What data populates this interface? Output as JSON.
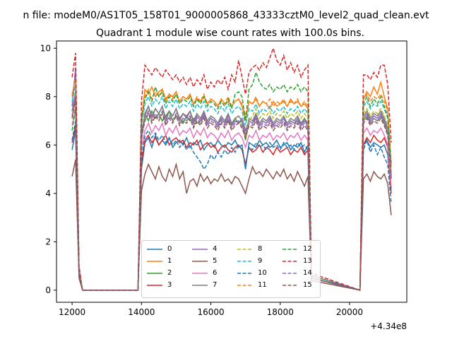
{
  "suptitle": "n file: modeM0/AS1T05_158T01_9000005868_43333cztM0_level2_quad_clean.evt",
  "chart_data": {
    "type": "line",
    "title": "Quadrant 1 module wise count rates with 100.0s bins.",
    "xlabel": "",
    "ylabel": "",
    "x_offset_label": "+4.34e8",
    "xlim": [
      11550,
      21650
    ],
    "ylim": [
      -0.5,
      10.3
    ],
    "xticks": [
      12000,
      14000,
      16000,
      18000,
      20000
    ],
    "yticks": [
      0,
      2,
      4,
      6,
      8,
      10
    ],
    "grid": false,
    "legend_position": "lower center",
    "x": [
      12000,
      12100,
      12200,
      12300,
      13900,
      14000,
      14100,
      14200,
      14300,
      14400,
      14500,
      14600,
      14700,
      14800,
      14900,
      15000,
      15100,
      15200,
      15300,
      15400,
      15500,
      15600,
      15700,
      15800,
      15900,
      16000,
      16100,
      16200,
      16300,
      16400,
      16500,
      16600,
      16700,
      16800,
      16900,
      17000,
      17100,
      17200,
      17300,
      17400,
      17500,
      17600,
      17700,
      17800,
      17900,
      18000,
      18100,
      18200,
      18300,
      18400,
      18500,
      18600,
      18700,
      18800,
      18900,
      20300,
      20400,
      20500,
      20600,
      20700,
      20800,
      20900,
      21000,
      21100,
      21200
    ],
    "series": [
      {
        "name": "0",
        "color": "#1f77b4",
        "dash": "solid",
        "values": [
          5.8,
          6.6,
          0.6,
          0,
          0,
          5.0,
          6.1,
          6.3,
          5.9,
          6.4,
          6.0,
          6.2,
          6.0,
          6.3,
          5.9,
          6.1,
          6.2,
          6.0,
          6.3,
          5.9,
          6.1,
          6.0,
          6.2,
          5.8,
          6.0,
          6.1,
          5.9,
          6.2,
          6.0,
          5.9,
          6.1,
          6.0,
          6.2,
          5.9,
          6.0,
          5.0,
          6.1,
          6.0,
          5.9,
          6.2,
          6.0,
          6.1,
          5.9,
          6.0,
          6.2,
          5.9,
          6.0,
          6.1,
          5.8,
          6.0,
          5.9,
          6.1,
          5.7,
          6.0,
          0.5,
          0,
          6.0,
          6.2,
          5.9,
          6.1,
          6.0,
          5.9,
          6.0,
          5.6,
          4.2
        ]
      },
      {
        "name": "1",
        "color": "#ff7f0e",
        "dash": "solid",
        "values": [
          8.0,
          8.9,
          0.9,
          0,
          0,
          7.0,
          8.3,
          8.1,
          8.4,
          8.0,
          8.2,
          8.3,
          7.9,
          8.1,
          8.0,
          8.2,
          7.8,
          8.0,
          7.9,
          8.1,
          7.7,
          7.9,
          7.8,
          8.0,
          7.7,
          7.9,
          7.8,
          7.6,
          7.9,
          7.7,
          7.8,
          7.6,
          7.8,
          7.9,
          7.6,
          7.0,
          7.8,
          7.7,
          7.9,
          7.6,
          7.8,
          7.7,
          7.5,
          7.8,
          7.6,
          7.7,
          7.8,
          7.6,
          7.9,
          7.7,
          7.8,
          7.6,
          7.7,
          7.5,
          0.6,
          0,
          7.9,
          8.2,
          8.0,
          8.4,
          8.1,
          8.6,
          8.0,
          7.5,
          5.1
        ]
      },
      {
        "name": "2",
        "color": "#2ca02c",
        "dash": "solid",
        "values": [
          7.4,
          8.1,
          0.8,
          0,
          0,
          6.2,
          7.3,
          7.0,
          7.4,
          7.1,
          7.3,
          7.0,
          7.2,
          7.4,
          7.0,
          7.2,
          7.1,
          6.9,
          7.2,
          7.0,
          7.1,
          6.9,
          7.0,
          7.2,
          6.9,
          7.1,
          7.0,
          6.8,
          7.1,
          6.9,
          7.0,
          6.8,
          7.1,
          6.9,
          7.0,
          6.2,
          7.0,
          6.9,
          7.1,
          6.8,
          7.0,
          6.9,
          7.1,
          6.8,
          7.0,
          6.9,
          7.1,
          6.8,
          7.0,
          6.9,
          7.0,
          6.8,
          7.1,
          6.8,
          0.6,
          0,
          7.0,
          7.2,
          6.9,
          7.1,
          7.0,
          7.2,
          6.9,
          6.5,
          4.6
        ]
      },
      {
        "name": "3",
        "color": "#d62728",
        "dash": "solid",
        "values": [
          6.1,
          6.8,
          0.6,
          0,
          0,
          5.2,
          6.2,
          6.4,
          6.1,
          6.3,
          6.0,
          6.2,
          6.4,
          6.0,
          6.2,
          6.3,
          6.1,
          6.2,
          5.9,
          6.1,
          6.0,
          6.2,
          5.8,
          6.0,
          6.1,
          5.9,
          6.0,
          5.7,
          5.9,
          6.0,
          5.8,
          5.7,
          5.9,
          6.0,
          5.8,
          5.2,
          5.9,
          5.7,
          5.8,
          6.0,
          5.7,
          5.9,
          5.8,
          5.6,
          5.9,
          5.7,
          5.8,
          5.9,
          5.6,
          5.8,
          5.7,
          5.9,
          5.6,
          5.8,
          0.5,
          0,
          6.0,
          6.3,
          6.1,
          6.4,
          6.2,
          6.1,
          6.3,
          5.9,
          4.0
        ]
      },
      {
        "name": "4",
        "color": "#9467bd",
        "dash": "solid",
        "values": [
          7.6,
          9.2,
          0.8,
          0,
          0,
          6.6,
          7.2,
          7.6,
          7.1,
          7.5,
          7.3,
          7.6,
          7.0,
          7.4,
          7.2,
          7.5,
          7.0,
          7.3,
          7.1,
          7.4,
          6.9,
          7.2,
          7.0,
          7.3,
          6.9,
          7.1,
          7.0,
          6.8,
          7.1,
          6.9,
          7.2,
          6.8,
          7.0,
          6.9,
          7.1,
          6.6,
          7.0,
          6.9,
          7.2,
          6.8,
          7.0,
          6.9,
          7.1,
          6.8,
          7.0,
          6.9,
          7.1,
          6.8,
          7.0,
          6.9,
          7.1,
          6.8,
          7.0,
          6.8,
          0.6,
          0,
          7.1,
          7.3,
          7.0,
          7.2,
          7.1,
          7.3,
          7.0,
          6.6,
          4.7
        ]
      },
      {
        "name": "5",
        "color": "#8c564b",
        "dash": "solid",
        "values": [
          4.7,
          5.4,
          0.5,
          0,
          0,
          4.1,
          4.8,
          5.2,
          4.9,
          4.6,
          5.1,
          4.7,
          4.5,
          5.0,
          4.7,
          5.2,
          4.6,
          4.9,
          4.0,
          4.5,
          4.6,
          4.3,
          4.8,
          4.5,
          4.7,
          4.4,
          4.6,
          4.5,
          4.8,
          4.5,
          4.6,
          4.4,
          4.7,
          4.6,
          4.3,
          4.0,
          4.6,
          5.1,
          4.8,
          4.9,
          4.7,
          5.0,
          4.8,
          4.6,
          4.9,
          4.7,
          5.0,
          4.6,
          4.8,
          4.5,
          4.9,
          4.6,
          4.3,
          4.7,
          0.4,
          0,
          4.6,
          4.8,
          4.5,
          4.9,
          4.7,
          4.6,
          4.8,
          4.4,
          3.1
        ]
      },
      {
        "name": "6",
        "color": "#e377c2",
        "dash": "solid",
        "values": [
          6.8,
          7.6,
          0.7,
          0,
          0,
          5.9,
          6.6,
          6.9,
          6.5,
          6.8,
          6.6,
          6.9,
          6.4,
          6.7,
          6.5,
          6.8,
          6.4,
          6.6,
          6.5,
          6.7,
          6.3,
          6.6,
          6.4,
          6.7,
          6.3,
          6.5,
          6.4,
          6.2,
          6.5,
          6.3,
          6.6,
          6.2,
          6.4,
          6.5,
          6.3,
          5.9,
          6.4,
          6.3,
          6.6,
          6.2,
          6.4,
          6.3,
          6.5,
          6.2,
          6.4,
          6.3,
          6.5,
          6.2,
          6.4,
          6.3,
          6.5,
          6.2,
          6.4,
          6.2,
          0.5,
          0,
          6.5,
          6.7,
          6.4,
          6.6,
          6.5,
          6.7,
          6.4,
          6.0,
          4.3
        ]
      },
      {
        "name": "7",
        "color": "#7f7f7f",
        "dash": "solid",
        "values": [
          7.4,
          8.2,
          0.8,
          0,
          0,
          6.4,
          7.3,
          7.6,
          7.2,
          7.5,
          7.3,
          7.6,
          7.1,
          7.4,
          7.2,
          7.5,
          7.1,
          7.3,
          7.2,
          7.4,
          7.0,
          7.3,
          7.1,
          7.4,
          7.0,
          7.2,
          7.1,
          6.9,
          7.2,
          7.0,
          7.3,
          6.9,
          7.1,
          7.2,
          7.0,
          6.4,
          7.1,
          7.0,
          7.3,
          6.9,
          7.1,
          7.0,
          7.2,
          6.9,
          7.1,
          7.0,
          7.2,
          6.9,
          7.1,
          7.0,
          7.2,
          6.9,
          7.1,
          6.9,
          0.6,
          0,
          7.2,
          7.4,
          7.1,
          7.3,
          7.2,
          7.4,
          7.1,
          6.7,
          4.8
        ]
      },
      {
        "name": "8",
        "color": "#bcbd22",
        "dash": "dashed",
        "values": [
          7.2,
          8.0,
          0.8,
          0,
          0,
          6.3,
          7.1,
          7.4,
          7.0,
          7.3,
          7.1,
          7.4,
          6.9,
          7.2,
          7.0,
          7.3,
          6.9,
          7.1,
          7.0,
          7.2,
          6.8,
          7.1,
          6.9,
          7.2,
          6.8,
          7.0,
          6.9,
          6.7,
          7.0,
          6.8,
          7.1,
          6.7,
          6.9,
          7.0,
          6.8,
          6.3,
          7.0,
          7.2,
          7.5,
          7.1,
          7.3,
          7.2,
          7.4,
          7.1,
          7.3,
          7.2,
          7.4,
          7.1,
          7.3,
          7.2,
          7.4,
          7.1,
          7.3,
          7.1,
          0.6,
          0,
          7.3,
          7.5,
          7.2,
          7.4,
          7.3,
          7.5,
          7.2,
          6.8,
          4.9
        ]
      },
      {
        "name": "9",
        "color": "#17becf",
        "dash": "dashed",
        "values": [
          7.8,
          8.5,
          0.8,
          0,
          0,
          6.8,
          7.7,
          8.0,
          7.6,
          7.9,
          7.7,
          8.0,
          7.5,
          7.8,
          7.6,
          7.9,
          7.5,
          7.7,
          7.6,
          7.8,
          7.4,
          7.7,
          7.5,
          7.8,
          7.4,
          7.6,
          7.5,
          7.3,
          7.6,
          7.4,
          7.7,
          7.3,
          7.5,
          7.6,
          7.4,
          6.8,
          7.5,
          7.4,
          7.7,
          7.3,
          7.5,
          7.4,
          7.6,
          7.3,
          7.5,
          7.4,
          7.6,
          7.3,
          7.5,
          7.4,
          7.6,
          7.3,
          7.5,
          7.3,
          0.6,
          0,
          7.6,
          7.8,
          7.5,
          7.7,
          7.6,
          7.8,
          7.5,
          7.1,
          5.1
        ]
      },
      {
        "name": "10",
        "color": "#1f77b4",
        "dash": "dashed",
        "values": [
          6.2,
          7.0,
          0.7,
          0,
          0,
          5.5,
          6.4,
          6.6,
          6.3,
          6.5,
          6.2,
          6.4,
          6.1,
          6.3,
          6.0,
          6.2,
          5.9,
          6.1,
          5.8,
          6.0,
          5.7,
          5.5,
          5.3,
          5.0,
          5.2,
          5.6,
          5.4,
          5.7,
          5.5,
          5.8,
          5.6,
          5.9,
          5.7,
          6.0,
          5.8,
          5.2,
          5.9,
          5.8,
          6.1,
          5.9,
          6.0,
          5.8,
          6.1,
          5.9,
          6.0,
          5.8,
          6.1,
          5.9,
          6.0,
          5.8,
          6.1,
          5.9,
          6.0,
          5.8,
          0.5,
          0,
          5.8,
          6.2,
          5.7,
          6.0,
          5.6,
          5.9,
          5.5,
          5.2,
          3.6
        ]
      },
      {
        "name": "11",
        "color": "#ff7f0e",
        "dash": "dashed",
        "values": [
          8.1,
          8.7,
          0.9,
          0,
          0,
          7.2,
          8.0,
          8.3,
          7.9,
          8.2,
          8.0,
          8.3,
          7.8,
          8.1,
          7.9,
          8.2,
          7.8,
          8.0,
          7.9,
          8.1,
          7.7,
          8.0,
          7.8,
          8.1,
          7.7,
          7.9,
          7.8,
          7.6,
          7.9,
          7.7,
          8.0,
          7.6,
          7.8,
          7.9,
          7.7,
          7.2,
          7.8,
          7.7,
          8.0,
          7.6,
          7.8,
          7.7,
          7.9,
          7.6,
          7.8,
          7.7,
          7.9,
          7.6,
          7.8,
          7.7,
          7.9,
          7.6,
          7.8,
          7.6,
          0.6,
          0,
          7.9,
          8.1,
          7.8,
          8.0,
          7.9,
          8.1,
          7.8,
          7.4,
          5.3
        ]
      },
      {
        "name": "12",
        "color": "#2ca02c",
        "dash": "dashed",
        "values": [
          6.6,
          7.5,
          0.7,
          0,
          0,
          7.0,
          7.9,
          8.2,
          7.8,
          8.4,
          8.0,
          8.2,
          7.7,
          8.0,
          7.8,
          8.1,
          7.7,
          7.9,
          7.8,
          8.0,
          7.6,
          7.9,
          7.7,
          8.0,
          7.6,
          7.8,
          7.7,
          7.5,
          7.8,
          7.6,
          7.9,
          7.5,
          8.1,
          8.2,
          8.0,
          7.0,
          8.3,
          8.5,
          9.0,
          8.6,
          8.4,
          8.3,
          8.5,
          8.2,
          8.4,
          8.3,
          8.5,
          8.2,
          8.4,
          8.3,
          8.5,
          8.2,
          8.4,
          8.2,
          0.6,
          0,
          7.7,
          8.0,
          7.6,
          7.9,
          7.7,
          8.0,
          7.6,
          7.2,
          5.2
        ]
      },
      {
        "name": "13",
        "color": "#d62728",
        "dash": "dashed",
        "values": [
          8.8,
          9.8,
          1.0,
          0,
          0,
          7.8,
          9.3,
          9.1,
          8.9,
          9.2,
          9.0,
          8.8,
          9.1,
          8.9,
          8.7,
          8.9,
          8.6,
          8.8,
          8.5,
          8.8,
          8.4,
          8.7,
          8.5,
          8.9,
          8.3,
          8.6,
          8.4,
          8.7,
          8.5,
          8.8,
          8.3,
          8.9,
          8.6,
          9.5,
          8.8,
          8.1,
          9.0,
          9.2,
          9.3,
          9.1,
          9.4,
          9.2,
          9.6,
          10.0,
          9.5,
          9.3,
          9.7,
          9.1,
          9.4,
          9.0,
          9.3,
          8.8,
          9.1,
          9.3,
          0.7,
          0,
          8.9,
          8.9,
          8.7,
          9.0,
          8.8,
          9.3,
          9.3,
          8.5,
          6.1
        ]
      },
      {
        "name": "14",
        "color": "#9467bd",
        "dash": "dashed",
        "values": [
          7.2,
          8.0,
          0.8,
          0,
          0,
          6.4,
          7.1,
          7.4,
          7.0,
          7.3,
          7.1,
          7.4,
          6.9,
          7.2,
          7.0,
          7.3,
          6.9,
          7.1,
          7.0,
          7.2,
          6.8,
          7.1,
          6.9,
          7.2,
          6.8,
          7.0,
          6.9,
          6.7,
          7.0,
          6.8,
          7.1,
          6.7,
          6.9,
          7.0,
          6.8,
          6.4,
          6.9,
          6.8,
          7.1,
          6.7,
          6.9,
          6.8,
          7.0,
          6.7,
          6.9,
          6.8,
          7.0,
          6.7,
          6.9,
          6.8,
          7.0,
          6.7,
          6.9,
          6.7,
          0.6,
          0,
          7.0,
          7.2,
          6.9,
          7.1,
          7.0,
          7.2,
          6.9,
          6.5,
          4.7
        ]
      },
      {
        "name": "15",
        "color": "#8c564b",
        "dash": "dashed",
        "values": [
          7.1,
          7.9,
          0.7,
          0,
          0,
          6.3,
          7.0,
          7.3,
          6.9,
          7.2,
          7.0,
          7.3,
          6.8,
          7.1,
          6.9,
          7.2,
          6.8,
          7.0,
          6.9,
          7.1,
          6.7,
          7.0,
          6.8,
          7.1,
          6.7,
          6.9,
          6.8,
          6.6,
          6.9,
          6.7,
          7.0,
          6.6,
          6.8,
          6.9,
          6.7,
          6.3,
          6.8,
          6.7,
          7.0,
          6.6,
          6.8,
          6.7,
          6.9,
          6.6,
          6.8,
          6.7,
          6.9,
          6.6,
          6.8,
          6.7,
          6.9,
          6.6,
          6.8,
          6.6,
          0.5,
          0,
          6.9,
          7.1,
          6.8,
          7.0,
          6.9,
          7.1,
          6.8,
          6.4,
          4.6
        ]
      }
    ]
  }
}
